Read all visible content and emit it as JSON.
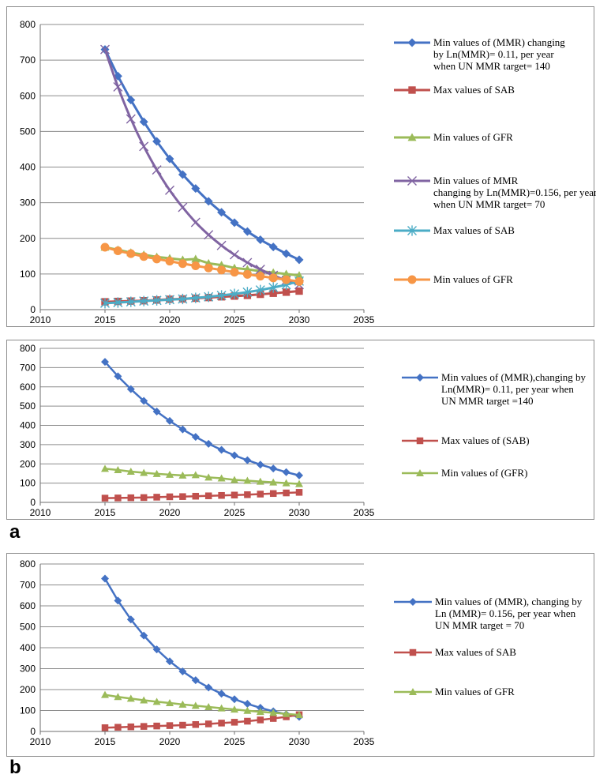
{
  "panel_labels": [
    "a",
    "b"
  ],
  "series_colors": {
    "mmr_011": "#4472C4",
    "sab": "#C0504D",
    "gfr": "#9BBB59",
    "mmr_0156": "#8064A2",
    "sab2": "#4BACC6",
    "gfr2": "#F79646"
  },
  "chart_data": [
    {
      "id": "top",
      "type": "line",
      "xlim": [
        2010,
        2035
      ],
      "ylim": [
        0,
        800
      ],
      "xticks": [
        2010,
        2015,
        2020,
        2025,
        2030,
        2035
      ],
      "yticks": [
        0,
        100,
        200,
        300,
        400,
        500,
        600,
        700,
        800
      ],
      "grid": true,
      "legend_position": "right",
      "x": [
        2015,
        2016,
        2017,
        2018,
        2019,
        2020,
        2021,
        2022,
        2023,
        2024,
        2025,
        2026,
        2027,
        2028,
        2029,
        2030
      ],
      "series": [
        {
          "name": "Min values of (MMR) changing by Ln(MMR)= 0.11, per year when UN MMR target= 140",
          "color_key": "mmr_011",
          "marker": "diamond",
          "smooth": false,
          "values": [
            730,
            655,
            588,
            527,
            472,
            423,
            379,
            340,
            304,
            273,
            244,
            219,
            196,
            176,
            157,
            140
          ]
        },
        {
          "name": "Max values of SAB",
          "color_key": "sab",
          "marker": "square",
          "smooth": false,
          "values": [
            22,
            23,
            24,
            25,
            27,
            29,
            30,
            32,
            34,
            36,
            38,
            40,
            43,
            46,
            49,
            52
          ]
        },
        {
          "name": "Min values of GFR",
          "color_key": "gfr",
          "marker": "triangle",
          "smooth": false,
          "values": [
            175,
            168,
            160,
            154,
            148,
            144,
            140,
            142,
            130,
            125,
            117,
            113,
            108,
            104,
            100,
            96
          ]
        },
        {
          "name": "Min values of MMR  changing by Ln(MMR)=0.156, per year when UN MMR target= 70",
          "color_key": "mmr_0156",
          "marker": "x",
          "smooth": true,
          "values": [
            730,
            625,
            535,
            458,
            392,
            335,
            287,
            245,
            210,
            180,
            154,
            132,
            113,
            96,
            82,
            70
          ]
        },
        {
          "name": "Max values of SAB",
          "color_key": "sab2",
          "marker": "star",
          "smooth": false,
          "values": [
            18,
            20,
            22,
            24,
            26,
            28,
            30,
            33,
            36,
            40,
            44,
            49,
            55,
            62,
            70,
            80
          ]
        },
        {
          "name": "Min values of GFR",
          "color_key": "gfr2",
          "marker": "circle",
          "smooth": false,
          "values": [
            175,
            165,
            157,
            149,
            142,
            136,
            129,
            123,
            117,
            111,
            105,
            99,
            94,
            89,
            84,
            79
          ]
        }
      ]
    },
    {
      "id": "a",
      "type": "line",
      "xlim": [
        2010,
        2035
      ],
      "ylim": [
        0,
        800
      ],
      "xticks": [
        2010,
        2015,
        2020,
        2025,
        2030,
        2035
      ],
      "yticks": [
        0,
        100,
        200,
        300,
        400,
        500,
        600,
        700,
        800
      ],
      "grid": true,
      "legend_position": "right",
      "x": [
        2015,
        2016,
        2017,
        2018,
        2019,
        2020,
        2021,
        2022,
        2023,
        2024,
        2025,
        2026,
        2027,
        2028,
        2029,
        2030
      ],
      "series": [
        {
          "name": "Min values of (MMR),changing by Ln(MMR)= 0.11, per year when UN MMR target =140",
          "color_key": "mmr_011",
          "marker": "diamond",
          "smooth": false,
          "values": [
            730,
            655,
            588,
            527,
            472,
            423,
            379,
            340,
            304,
            273,
            244,
            219,
            196,
            176,
            157,
            140
          ]
        },
        {
          "name": "Max values of (SAB)",
          "color_key": "sab",
          "marker": "square",
          "smooth": false,
          "values": [
            22,
            23,
            24,
            25,
            27,
            29,
            30,
            32,
            34,
            36,
            38,
            40,
            43,
            46,
            49,
            52
          ]
        },
        {
          "name": "Min values of (GFR)",
          "color_key": "gfr",
          "marker": "triangle",
          "smooth": false,
          "values": [
            175,
            168,
            160,
            154,
            148,
            144,
            140,
            142,
            130,
            125,
            117,
            113,
            108,
            104,
            100,
            96
          ]
        }
      ]
    },
    {
      "id": "b",
      "type": "line",
      "xlim": [
        2010,
        2035
      ],
      "ylim": [
        0,
        800
      ],
      "xticks": [
        2010,
        2015,
        2020,
        2025,
        2030,
        2035
      ],
      "yticks": [
        0,
        100,
        200,
        300,
        400,
        500,
        600,
        700,
        800
      ],
      "grid": true,
      "legend_position": "right",
      "x": [
        2015,
        2016,
        2017,
        2018,
        2019,
        2020,
        2021,
        2022,
        2023,
        2024,
        2025,
        2026,
        2027,
        2028,
        2029,
        2030
      ],
      "series": [
        {
          "name": "Min values of (MMR), changing by Ln (MMR)= 0.156, per year when UN MMR target = 70",
          "color_key": "mmr_011",
          "marker": "diamond",
          "smooth": false,
          "values": [
            730,
            625,
            535,
            458,
            392,
            335,
            287,
            245,
            210,
            180,
            154,
            132,
            113,
            96,
            82,
            70
          ]
        },
        {
          "name": "Max values of SAB",
          "color_key": "sab",
          "marker": "square",
          "smooth": false,
          "values": [
            18,
            20,
            22,
            24,
            26,
            28,
            30,
            33,
            36,
            40,
            44,
            49,
            55,
            62,
            70,
            80
          ]
        },
        {
          "name": "Min values of GFR",
          "color_key": "gfr",
          "marker": "triangle",
          "smooth": false,
          "values": [
            175,
            165,
            157,
            149,
            142,
            136,
            129,
            123,
            117,
            111,
            105,
            99,
            94,
            89,
            84,
            79
          ]
        }
      ]
    }
  ]
}
